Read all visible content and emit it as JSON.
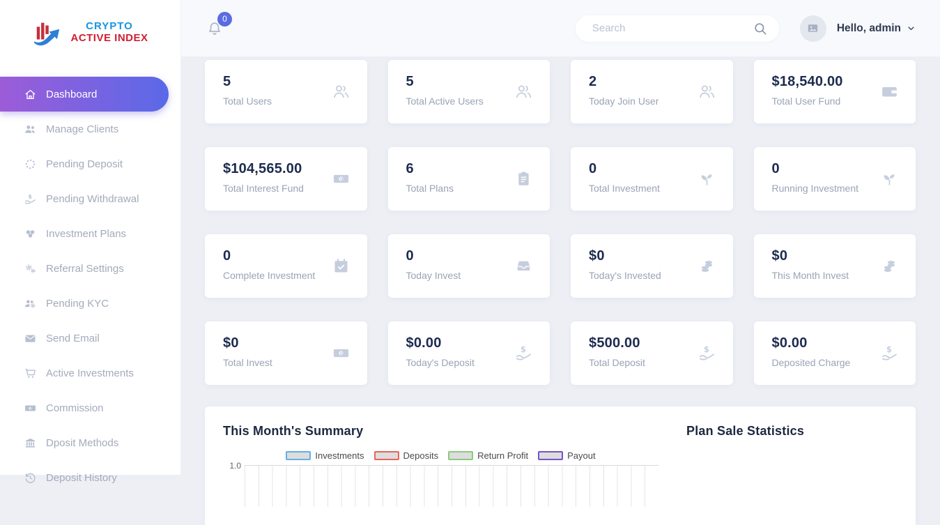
{
  "brand": {
    "line1": "CRYPTO",
    "line2": "ACTIVE INDEX"
  },
  "topbar": {
    "notification_count": "0",
    "search_placeholder": "Search",
    "greeting": "Hello, admin"
  },
  "sidebar": {
    "items": [
      {
        "label": "Dashboard",
        "icon": "home-icon",
        "active": true
      },
      {
        "label": "Manage Clients",
        "icon": "users-solid-icon",
        "active": false
      },
      {
        "label": "Pending Deposit",
        "icon": "spinner-icon",
        "active": false
      },
      {
        "label": "Pending Withdrawal",
        "icon": "hand-dollar-icon",
        "active": false
      },
      {
        "label": "Investment Plans",
        "icon": "coins-icon",
        "active": false
      },
      {
        "label": "Referral Settings",
        "icon": "gears-icon",
        "active": false
      },
      {
        "label": "Pending KYC",
        "icon": "users-gear-icon",
        "active": false
      },
      {
        "label": "Send Email",
        "icon": "envelope-icon",
        "active": false
      },
      {
        "label": "Active Investments",
        "icon": "cart-icon",
        "active": false
      },
      {
        "label": "Commission",
        "icon": "money-bill-icon",
        "active": false
      },
      {
        "label": "Dposit Methods",
        "icon": "bank-icon",
        "active": false
      },
      {
        "label": "Deposit History",
        "icon": "history-icon",
        "active": false
      }
    ]
  },
  "stats": [
    {
      "value": "5",
      "label": "Total Users",
      "icon": "users-icon"
    },
    {
      "value": "5",
      "label": "Total Active Users",
      "icon": "users-icon"
    },
    {
      "value": "2",
      "label": "Today Join User",
      "icon": "users-icon"
    },
    {
      "value": "$18,540.00",
      "label": "Total User Fund",
      "icon": "wallet-icon"
    },
    {
      "value": "$104,565.00",
      "label": "Total Interest Fund",
      "icon": "money-bill-icon"
    },
    {
      "value": "6",
      "label": "Total Plans",
      "icon": "clipboard-icon"
    },
    {
      "value": "0",
      "label": "Total Investment",
      "icon": "seedling-icon"
    },
    {
      "value": "0",
      "label": "Running Investment",
      "icon": "seedling-icon"
    },
    {
      "value": "0",
      "label": "Complete Investment",
      "icon": "calendar-check-icon"
    },
    {
      "value": "0",
      "label": "Today Invest",
      "icon": "inbox-icon"
    },
    {
      "value": "$0",
      "label": "Today's Invested",
      "icon": "coins-stack-icon"
    },
    {
      "value": "$0",
      "label": "This Month Invest",
      "icon": "coins-stack-icon"
    },
    {
      "value": "$0",
      "label": "Total Invest",
      "icon": "money-bill-icon"
    },
    {
      "value": "$0.00",
      "label": "Today's Deposit",
      "icon": "hand-dollar-icon"
    },
    {
      "value": "$500.00",
      "label": "Total Deposit",
      "icon": "hand-dollar-icon"
    },
    {
      "value": "$0.00",
      "label": "Deposited Charge",
      "icon": "hand-dollar-icon"
    }
  ],
  "summary": {
    "title": "This Month's Summary",
    "y_axis_top_tick": "1.0",
    "legend": [
      {
        "label": "Investments",
        "color": "#64b0e4"
      },
      {
        "label": "Deposits",
        "color": "#e8655a"
      },
      {
        "label": "Return Profit",
        "color": "#8bca7f"
      },
      {
        "label": "Payout",
        "color": "#7a52c9"
      }
    ]
  },
  "plan_stats": {
    "title": "Plan Sale Statistics"
  },
  "chart_data": {
    "type": "bar",
    "title": "This Month's Summary",
    "series": [
      {
        "name": "Investments"
      },
      {
        "name": "Deposits"
      },
      {
        "name": "Return Profit"
      },
      {
        "name": "Payout"
      }
    ],
    "visible_y_ticks": [
      "1.0"
    ],
    "legend_position": "top-center",
    "grid": true
  },
  "colors": {
    "active_gradient_from": "#9d5cd8",
    "active_gradient_to": "#5a69e8",
    "badge": "#5b6be4",
    "logo_blue": "#1796e0",
    "logo_red": "#cf1f33",
    "value_text": "#1d2b4f",
    "label_text": "#9aa3b5"
  }
}
